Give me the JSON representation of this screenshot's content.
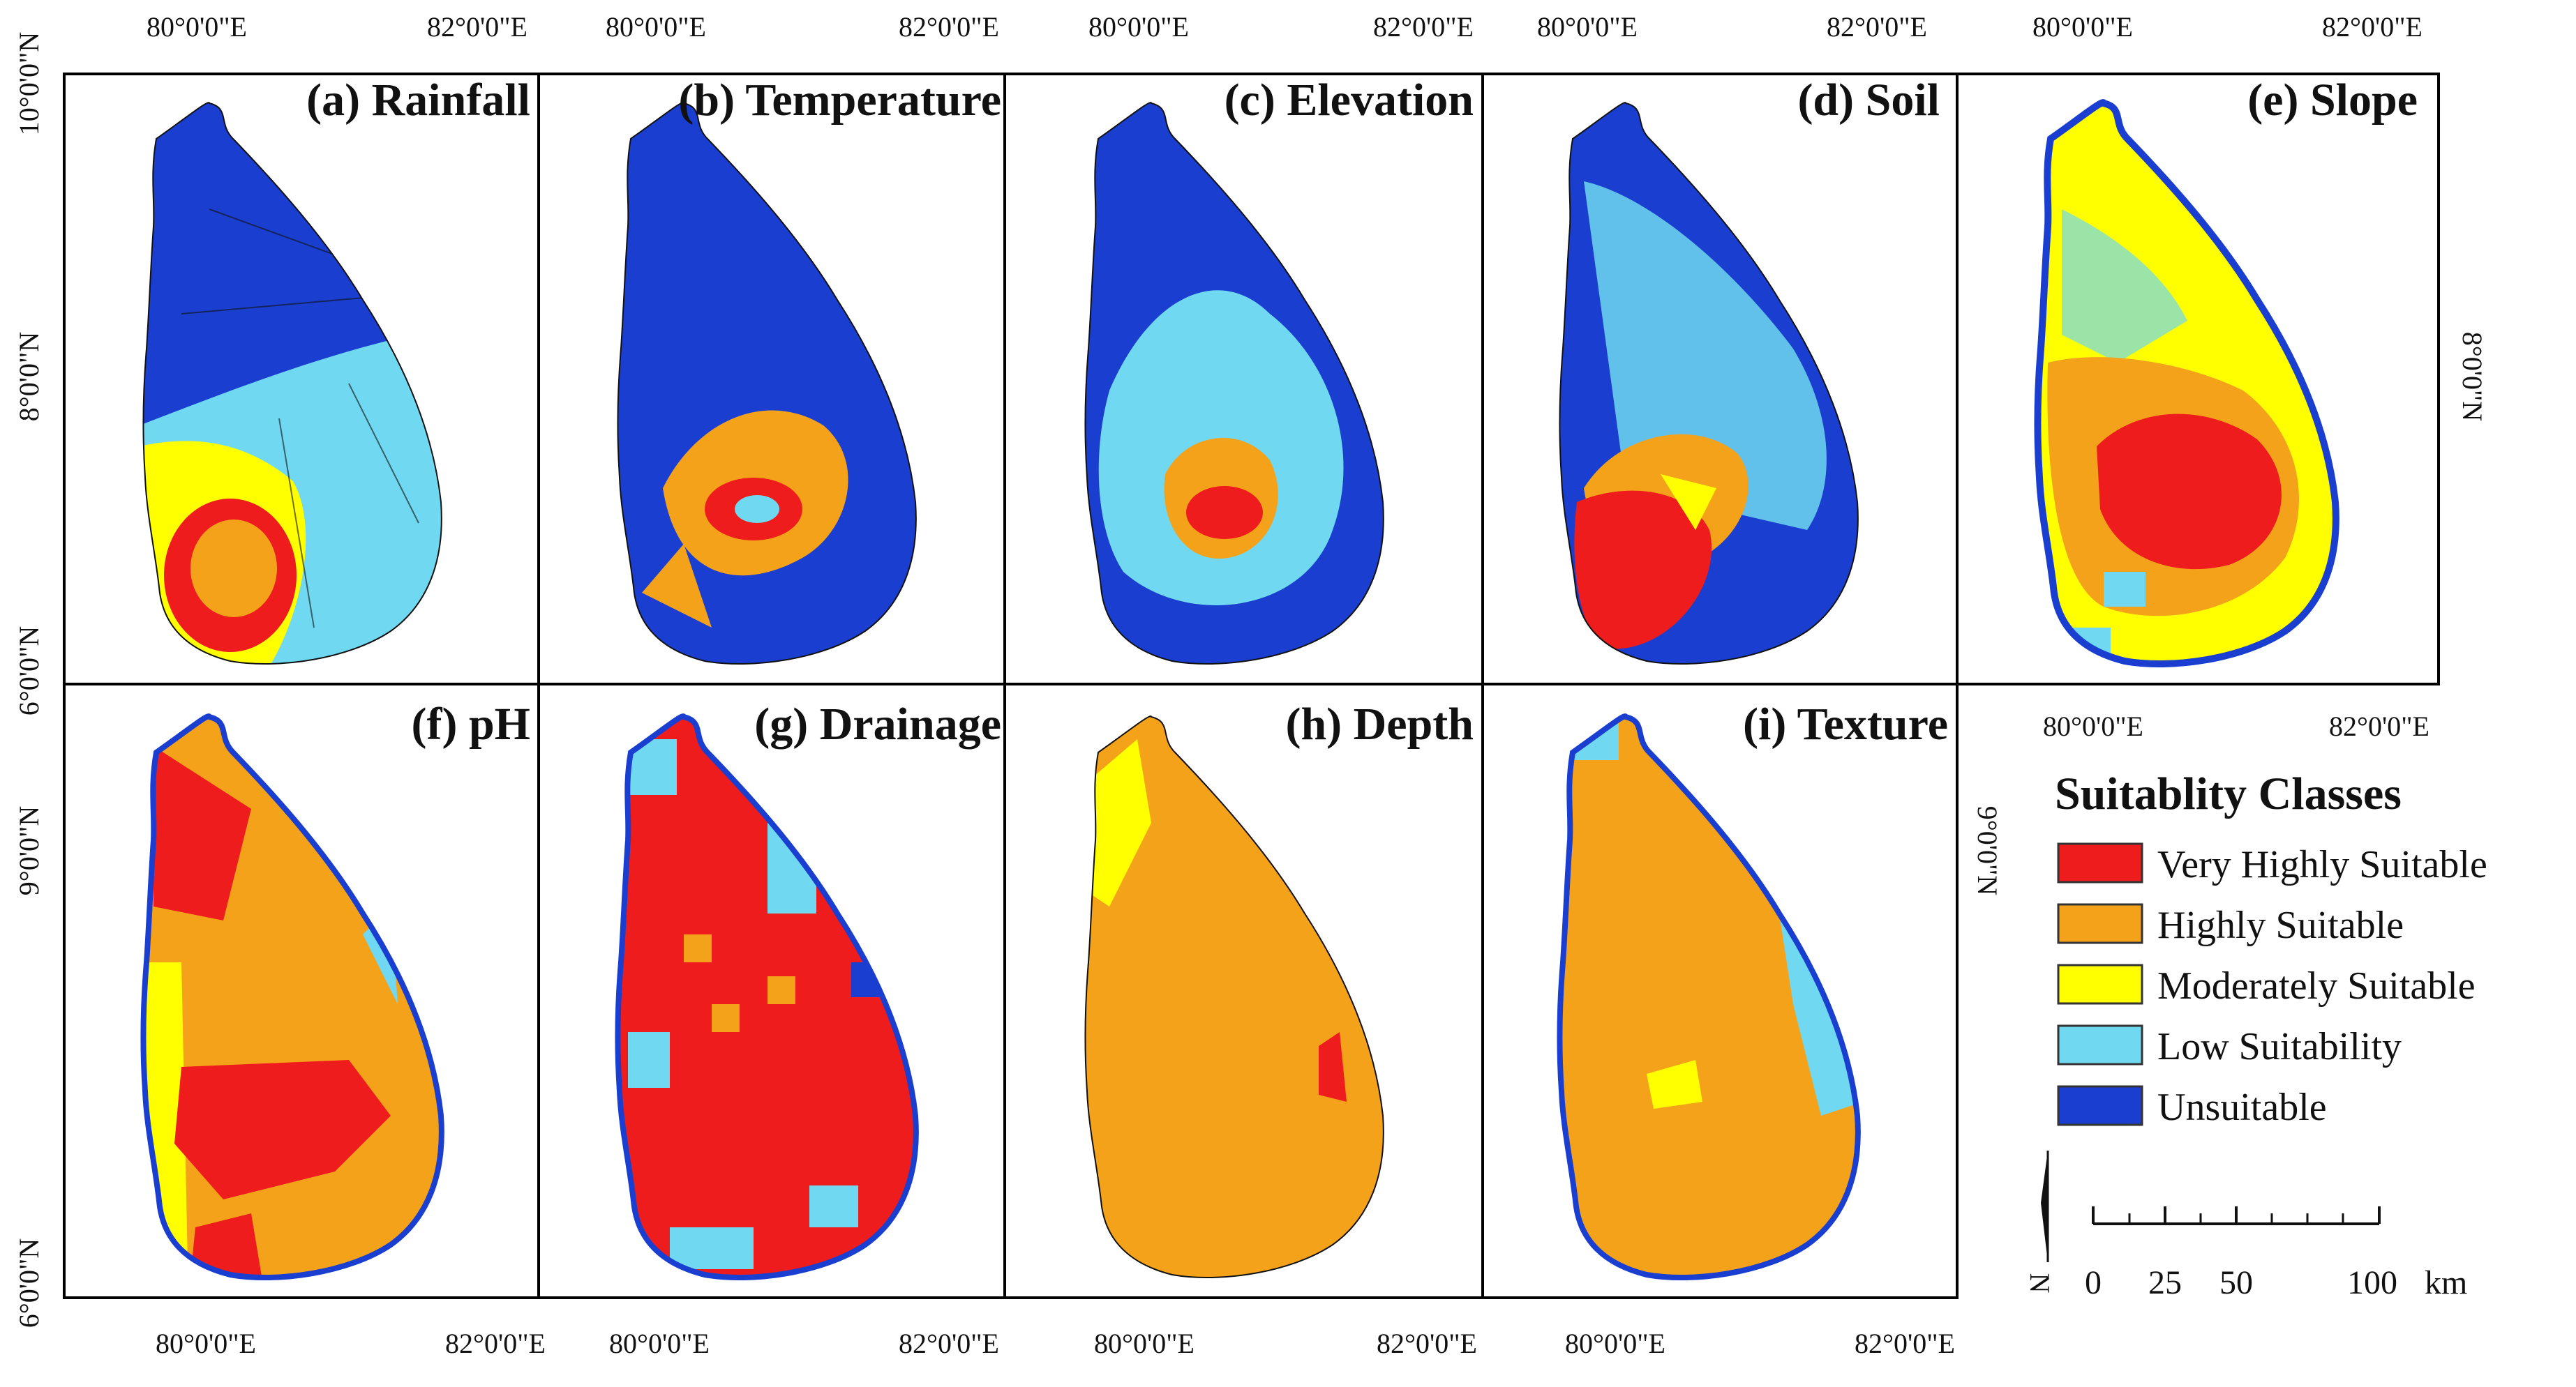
{
  "figure": {
    "panels": [
      {
        "id": "a",
        "title": "(a) Rainfall",
        "scheme": "rainfall",
        "top_labels": [
          "80°0'0\"E",
          "82°0'0\"E"
        ],
        "left_labels": [
          "10°0'0\"N",
          "8°0'0\"N",
          "6°0'0\"N"
        ]
      },
      {
        "id": "b",
        "title": "(b) Temperature",
        "scheme": "temperature",
        "top_labels": [
          "80°0'0\"E",
          "82°0'0\"E"
        ]
      },
      {
        "id": "c",
        "title": "(c) Elevation",
        "scheme": "elevation",
        "top_labels": [
          "80°0'0\"E",
          "82°0'0\"E"
        ]
      },
      {
        "id": "d",
        "title": "(d) Soil",
        "scheme": "soil",
        "top_labels": [
          "80°0'0\"E",
          "82°0'0\"E"
        ]
      },
      {
        "id": "e",
        "title": "(e) Slope",
        "scheme": "slope",
        "top_labels": [
          "80°0'0\"E",
          "82°0'0\"E"
        ],
        "right_labels": [
          "8°0'0\"N"
        ],
        "bottom_labels": [
          "80°0'0\"E",
          "82°0'0\"E"
        ]
      },
      {
        "id": "f",
        "title": "(f) pH",
        "scheme": "ph",
        "left_labels": [
          "9°0'0\"N",
          "6°0'0\"N"
        ],
        "bottom_labels": [
          "80°0'0\"E",
          "82°0'0\"E"
        ]
      },
      {
        "id": "g",
        "title": "(g) Drainage",
        "scheme": "drainage",
        "bottom_labels": [
          "80°0'0\"E",
          "82°0'0\"E"
        ]
      },
      {
        "id": "h",
        "title": "(h) Depth",
        "scheme": "depth",
        "bottom_labels": [
          "80°0'0\"E",
          "82°0'0\"E"
        ]
      },
      {
        "id": "i",
        "title": "(i) Texture",
        "scheme": "texture",
        "bottom_labels": [
          "80°0'0\"E",
          "82°0'0\"E"
        ],
        "right_labels": [
          "9°0'0\"N"
        ]
      }
    ]
  },
  "legend": {
    "title": "Suitablity Classes",
    "items": [
      {
        "label": "Very Highly Suitable",
        "color": "#ee1c1c"
      },
      {
        "label": "Highly Suitable",
        "color": "#f5a21b"
      },
      {
        "label": "Moderately Suitable",
        "color": "#ffff00"
      },
      {
        "label": "Low Suitability",
        "color": "#70d8f0"
      },
      {
        "label": "Unsuitable",
        "color": "#1a3fd0"
      }
    ]
  },
  "north_arrow": {
    "label": "N"
  },
  "scale_bar": {
    "ticks": [
      "0",
      "25",
      "50",
      "100"
    ],
    "unit": "km"
  },
  "colors": {
    "very_high": "#ee1c1c",
    "high": "#f5a21b",
    "moderate": "#ffff00",
    "low": "#70d8f0",
    "unsuitable": "#1a3fd0",
    "frame": "#000000"
  }
}
